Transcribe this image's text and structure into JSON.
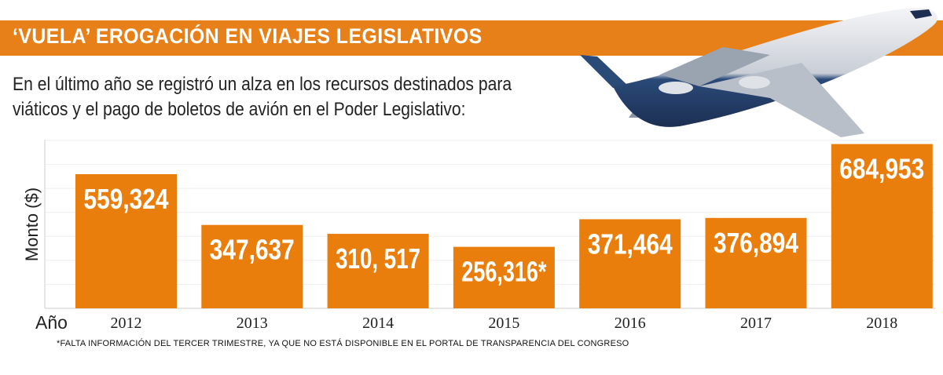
{
  "header": {
    "title": "‘VUELA’ EROGACIÓN EN VIAJES LEGISLATIVOS",
    "subtitle_line1": "En el último año se registró un alza en los recursos destinados para",
    "subtitle_line2": "viáticos y el pago de boletos de avión en el Poder Legislativo:"
  },
  "footnote": "*FALTA INFORMACIÓN DEL TERCER TRIMESTRE, YA QUE NO ESTÁ DISPONIBLE EN EL PORTAL DE TRANSPARENCIA DEL CONGRESO",
  "colors": {
    "accent": "#E8801A",
    "bar": "#EA7E0C",
    "label": "#ffffff"
  },
  "chart_data": {
    "type": "bar",
    "title": "",
    "xlabel": "Año",
    "ylabel": "Monto ($)",
    "categories": [
      "2012",
      "2013",
      "2014",
      "2015",
      "2016",
      "2017",
      "2018"
    ],
    "values": [
      559324,
      347637,
      310517,
      256316,
      371464,
      376894,
      684953
    ],
    "data_labels": [
      "559,324",
      "347,637",
      "310, 517",
      "256,316*",
      "371,464",
      "376,894",
      "684,953"
    ],
    "ylim": [
      0,
      700000
    ],
    "grid": true,
    "legend": "none"
  },
  "decoration": {
    "icon": "airplane-illustration"
  }
}
